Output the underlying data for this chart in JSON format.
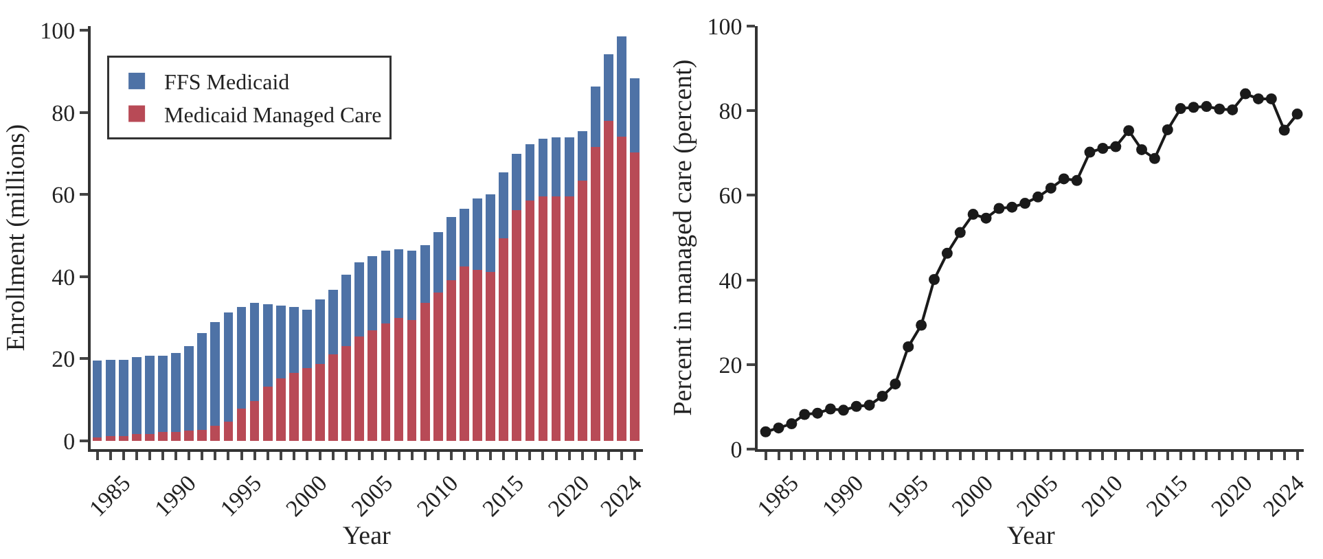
{
  "chart_data": [
    {
      "type": "bar",
      "stacked": true,
      "xlabel": "Year",
      "ylabel": "Enrollment (millions)",
      "x": [
        1983,
        1984,
        1985,
        1986,
        1987,
        1988,
        1989,
        1990,
        1991,
        1992,
        1993,
        1994,
        1995,
        1996,
        1997,
        1998,
        1999,
        2000,
        2001,
        2002,
        2003,
        2004,
        2005,
        2006,
        2007,
        2008,
        2009,
        2010,
        2011,
        2012,
        2013,
        2014,
        2015,
        2016,
        2017,
        2018,
        2019,
        2020,
        2021,
        2022,
        2023,
        2024
      ],
      "series": [
        {
          "name": "Medicaid Managed Care",
          "color": "#b84a56",
          "values": [
            0.8,
            1.1,
            1.2,
            1.7,
            1.7,
            2.1,
            2.1,
            2.5,
            2.7,
            3.7,
            4.7,
            7.8,
            9.7,
            13.2,
            15.2,
            16.5,
            17.8,
            18.8,
            21.1,
            23.1,
            25.4,
            27.0,
            28.6,
            29.9,
            29.5,
            33.6,
            36.2,
            39.1,
            42.5,
            41.7,
            41.1,
            49.3,
            56.2,
            58.5,
            59.5,
            59.5,
            59.5,
            63.4,
            71.5,
            78.0,
            74.1,
            70.3
          ]
        },
        {
          "name": "FFS Medicaid",
          "color": "#4e72a6",
          "values": [
            18.7,
            18.7,
            18.6,
            18.7,
            19.1,
            18.7,
            19.3,
            20.6,
            23.6,
            25.3,
            26.6,
            24.8,
            23.9,
            20.0,
            17.7,
            16.1,
            14.1,
            15.7,
            15.7,
            17.3,
            18.0,
            18.0,
            17.7,
            16.8,
            16.8,
            14.1,
            14.7,
            15.4,
            14.0,
            17.4,
            19.0,
            16.1,
            13.7,
            13.7,
            14.1,
            14.4,
            14.4,
            12.1,
            14.8,
            16.2,
            24.4,
            18.0
          ]
        }
      ],
      "xlim": [
        1982.5,
        2024.6
      ],
      "ylim": [
        -2,
        101
      ],
      "yticks": [
        0,
        20,
        40,
        60,
        80,
        100
      ],
      "xticks": [
        {
          "value": 1983,
          "label": null
        },
        {
          "value": 1984,
          "label": null
        },
        1985,
        {
          "value": 1986,
          "label": null
        },
        {
          "value": 1987,
          "label": null
        },
        {
          "value": 1988,
          "label": null
        },
        {
          "value": 1989,
          "label": null
        },
        1990,
        {
          "value": 1991,
          "label": null
        },
        {
          "value": 1992,
          "label": null
        },
        {
          "value": 1993,
          "label": null
        },
        {
          "value": 1994,
          "label": null
        },
        1995,
        {
          "value": 1996,
          "label": null
        },
        {
          "value": 1997,
          "label": null
        },
        {
          "value": 1998,
          "label": null
        },
        {
          "value": 1999,
          "label": null
        },
        2000,
        {
          "value": 2001,
          "label": null
        },
        {
          "value": 2002,
          "label": null
        },
        {
          "value": 2003,
          "label": null
        },
        {
          "value": 2004,
          "label": null
        },
        2005,
        {
          "value": 2006,
          "label": null
        },
        {
          "value": 2007,
          "label": null
        },
        {
          "value": 2008,
          "label": null
        },
        {
          "value": 2009,
          "label": null
        },
        2010,
        {
          "value": 2011,
          "label": null
        },
        {
          "value": 2012,
          "label": null
        },
        {
          "value": 2013,
          "label": null
        },
        {
          "value": 2014,
          "label": null
        },
        2015,
        {
          "value": 2016,
          "label": null
        },
        {
          "value": 2017,
          "label": null
        },
        {
          "value": 2018,
          "label": null
        },
        {
          "value": 2019,
          "label": null
        },
        2020,
        {
          "value": 2021,
          "label": null
        },
        {
          "value": 2022,
          "label": null
        },
        {
          "value": 2023,
          "label": null
        },
        2024
      ],
      "legend": "top left"
    },
    {
      "type": "line",
      "xlabel": "Year",
      "ylabel": "Percent in managed care (percent)",
      "marker": "circle",
      "line_style": "solid",
      "x": [
        1983,
        1984,
        1985,
        1986,
        1987,
        1988,
        1989,
        1990,
        1991,
        1992,
        1993,
        1994,
        1995,
        1996,
        1997,
        1998,
        1999,
        2000,
        2001,
        2002,
        2003,
        2004,
        2005,
        2006,
        2007,
        2008,
        2009,
        2010,
        2011,
        2012,
        2013,
        2014,
        2015,
        2016,
        2017,
        2018,
        2019,
        2020,
        2021,
        2022,
        2023,
        2024
      ],
      "series": [
        {
          "color": "#1a1a1a",
          "values": [
            4.1,
            5.0,
            6.0,
            8.2,
            8.5,
            9.5,
            9.2,
            10.1,
            10.4,
            12.5,
            15.4,
            24.2,
            29.3,
            40.1,
            46.3,
            51.2,
            55.5,
            54.6,
            56.9,
            57.2,
            58.1,
            59.6,
            61.7,
            63.9,
            63.5,
            70.2,
            71.1,
            71.5,
            75.3,
            70.8,
            68.7,
            75.5,
            80.5,
            80.8,
            81.0,
            80.4,
            80.2,
            84.0,
            82.8,
            82.8,
            75.4,
            79.2
          ]
        }
      ],
      "xlim": [
        1982.4,
        2024.5
      ],
      "ylim": [
        0,
        100
      ],
      "yticks": [
        0,
        20,
        40,
        60,
        80,
        100
      ],
      "xticks": [
        {
          "value": 1983,
          "label": null
        },
        {
          "value": 1984,
          "label": null
        },
        1985,
        {
          "value": 1986,
          "label": null
        },
        {
          "value": 1987,
          "label": null
        },
        {
          "value": 1988,
          "label": null
        },
        {
          "value": 1989,
          "label": null
        },
        1990,
        {
          "value": 1991,
          "label": null
        },
        {
          "value": 1992,
          "label": null
        },
        {
          "value": 1993,
          "label": null
        },
        {
          "value": 1994,
          "label": null
        },
        1995,
        {
          "value": 1996,
          "label": null
        },
        {
          "value": 1997,
          "label": null
        },
        {
          "value": 1998,
          "label": null
        },
        {
          "value": 1999,
          "label": null
        },
        2000,
        {
          "value": 2001,
          "label": null
        },
        {
          "value": 2002,
          "label": null
        },
        {
          "value": 2003,
          "label": null
        },
        {
          "value": 2004,
          "label": null
        },
        2005,
        {
          "value": 2006,
          "label": null
        },
        {
          "value": 2007,
          "label": null
        },
        {
          "value": 2008,
          "label": null
        },
        {
          "value": 2009,
          "label": null
        },
        2010,
        {
          "value": 2011,
          "label": null
        },
        {
          "value": 2012,
          "label": null
        },
        {
          "value": 2013,
          "label": null
        },
        {
          "value": 2014,
          "label": null
        },
        2015,
        {
          "value": 2016,
          "label": null
        },
        {
          "value": 2017,
          "label": null
        },
        {
          "value": 2018,
          "label": null
        },
        {
          "value": 2019,
          "label": null
        },
        2020,
        {
          "value": 2021,
          "label": null
        },
        {
          "value": 2022,
          "label": null
        },
        {
          "value": 2023,
          "label": null
        },
        2024
      ],
      "legend": false
    }
  ]
}
